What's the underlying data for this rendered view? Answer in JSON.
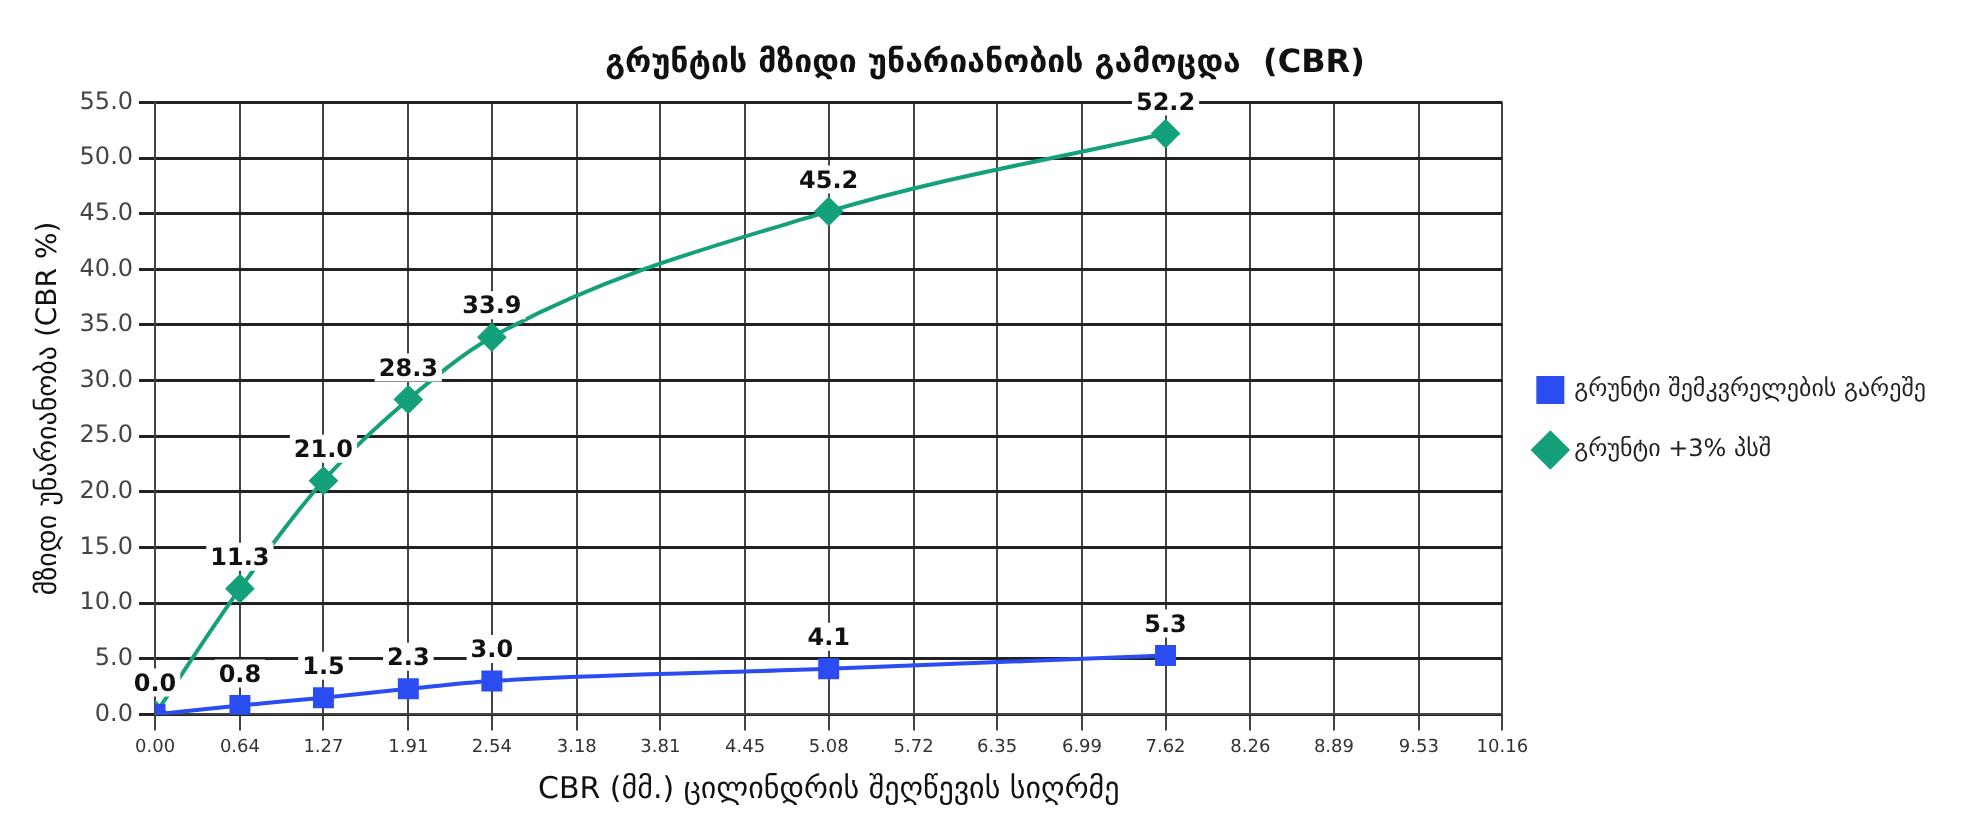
{
  "chart_data": {
    "type": "line",
    "title": "გრუნტის მზიდი უნარიანობის გამოცდა  (CBR)",
    "xlabel": "CBR (მმ.) ცილინდრის შეღწევის სიღრმე",
    "ylabel": "მზიდი უნარიანობა (CBR %)",
    "x": [
      0,
      0.64,
      1.27,
      1.91,
      2.54,
      5.08,
      7.62
    ],
    "series": [
      {
        "name": "გრუნტი შემკვრელების გარეშე",
        "color": "#2b4cf0",
        "marker": "square",
        "values": [
          0.0,
          0.8,
          1.5,
          2.3,
          3.0,
          4.1,
          5.3
        ],
        "value_labels": [
          null,
          "0.8",
          "1.5",
          "2.3",
          "3.0",
          "4.1",
          "5.3"
        ]
      },
      {
        "name": "გრუნტი +3% პსშ",
        "color": "#14a07a",
        "marker": "diamond",
        "values": [
          0.0,
          11.3,
          21.0,
          28.3,
          33.9,
          45.2,
          52.2
        ],
        "value_labels": [
          "0.0",
          "11.3",
          "21.0",
          "28.3",
          "33.9",
          "45.2",
          "52.2"
        ]
      }
    ],
    "xlim": [
      0,
      10.16
    ],
    "xticks": [
      {
        "value": 0,
        "label": "0.00"
      },
      0.64,
      1.27,
      1.91,
      2.54,
      3.18,
      3.81,
      4.45,
      5.08,
      5.72,
      6.35,
      6.99,
      7.62,
      8.26,
      8.89,
      9.53,
      10.16
    ],
    "ylim": [
      0,
      55
    ],
    "yticks": [
      {
        "value": 0,
        "label": "0.0"
      },
      {
        "value": 5,
        "label": "5.0"
      },
      {
        "value": 10,
        "label": "10.0"
      },
      {
        "value": 15,
        "label": "15.0"
      },
      {
        "value": 20,
        "label": "20.0"
      },
      {
        "value": 25,
        "label": "25.0"
      },
      {
        "value": 30,
        "label": "30.0"
      },
      {
        "value": 35,
        "label": "35.0"
      },
      {
        "value": 40,
        "label": "40.0"
      },
      {
        "value": 45,
        "label": "45.0"
      },
      {
        "value": 50,
        "label": "50.0"
      },
      {
        "value": 55,
        "label": "55.0"
      }
    ],
    "grid": true,
    "legend": "right"
  }
}
